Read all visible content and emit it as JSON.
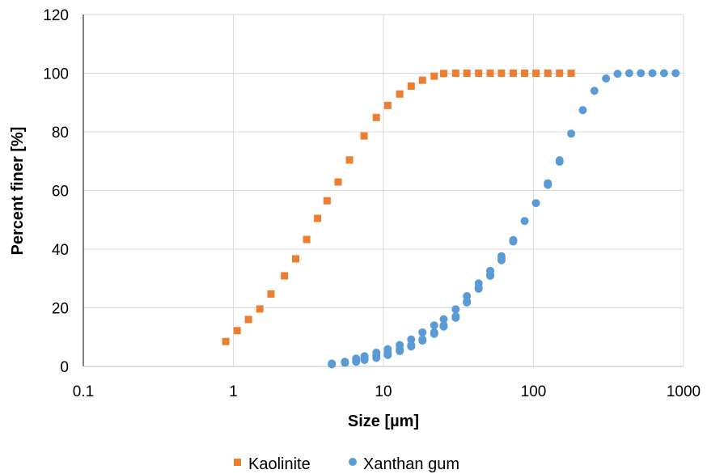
{
  "chart_data": {
    "type": "scatter",
    "title": "",
    "xlabel": "Size [µm]",
    "ylabel": "Percent finer [%]",
    "x_scale": "log",
    "xlim": [
      0.1,
      1000
    ],
    "ylim": [
      0,
      120
    ],
    "x_ticks": [
      0.1,
      1,
      10,
      100,
      1000
    ],
    "x_tick_labels": [
      "0.1",
      "1",
      "10",
      "100",
      "1000"
    ],
    "y_ticks": [
      0,
      20,
      40,
      60,
      80,
      100,
      120
    ],
    "y_tick_labels": [
      "0",
      "20",
      "40",
      "60",
      "80",
      "100",
      "120"
    ],
    "grid": true,
    "legend_position": "bottom",
    "series": [
      {
        "name": "Kaolinite",
        "marker": "square",
        "color": "#ED7D31",
        "points": [
          [
            0.89,
            8.5
          ],
          [
            1.06,
            12.2
          ],
          [
            1.26,
            16.0
          ],
          [
            1.5,
            19.6
          ],
          [
            1.78,
            24.7
          ],
          [
            2.19,
            30.9
          ],
          [
            2.6,
            36.7
          ],
          [
            3.08,
            43.3
          ],
          [
            3.64,
            50.5
          ],
          [
            4.21,
            56.5
          ],
          [
            4.99,
            62.9
          ],
          [
            5.94,
            70.4
          ],
          [
            7.43,
            78.6
          ],
          [
            8.97,
            84.9
          ],
          [
            10.69,
            89.0
          ],
          [
            12.84,
            92.9
          ],
          [
            15.31,
            95.6
          ],
          [
            18.2,
            97.6
          ],
          [
            21.8,
            99.0
          ],
          [
            25.2,
            99.9
          ],
          [
            30.3,
            100
          ],
          [
            36.0,
            100
          ],
          [
            43.1,
            100
          ],
          [
            51.5,
            100
          ],
          [
            61.2,
            100
          ],
          [
            73.3,
            100
          ],
          [
            87.3,
            100
          ],
          [
            103.9,
            100
          ],
          [
            124.6,
            100
          ],
          [
            149.2,
            100
          ],
          [
            178.3,
            100
          ]
        ]
      },
      {
        "name": "Xanthan gum",
        "marker": "circle",
        "color": "#5B9BD5",
        "points": [
          [
            4.53,
            1.0
          ],
          [
            5.54,
            1.6
          ],
          [
            6.58,
            2.1
          ],
          [
            7.48,
            2.8
          ],
          [
            8.97,
            3.6
          ],
          [
            10.69,
            4.7
          ],
          [
            12.84,
            5.9
          ],
          [
            15.31,
            7.3
          ],
          [
            18.2,
            9.2
          ],
          [
            21.8,
            11.6
          ],
          [
            25.2,
            14.0
          ],
          [
            30.3,
            17.1
          ],
          [
            36.0,
            22.2
          ],
          [
            43.1,
            26.9
          ],
          [
            51.5,
            31.3
          ],
          [
            61.2,
            36.7
          ],
          [
            73.3,
            43.1
          ],
          [
            124.6,
            62.5
          ],
          [
            149.2,
            70.3
          ],
          [
            4.53,
            0.7
          ],
          [
            5.54,
            1.2
          ],
          [
            6.58,
            1.6
          ],
          [
            7.48,
            2.2
          ],
          [
            8.97,
            2.9
          ],
          [
            10.69,
            3.9
          ],
          [
            12.84,
            5.2
          ],
          [
            15.31,
            6.8
          ],
          [
            18.2,
            8.8
          ],
          [
            21.8,
            11.1
          ],
          [
            25.2,
            13.6
          ],
          [
            30.3,
            16.6
          ],
          [
            36.0,
            21.8
          ],
          [
            43.1,
            26.5
          ],
          [
            51.5,
            30.9
          ],
          [
            61.2,
            36.2
          ],
          [
            73.3,
            42.6
          ],
          [
            124.6,
            61.9
          ],
          [
            149.2,
            69.8
          ],
          [
            6.58,
            2.7
          ],
          [
            7.48,
            3.5
          ],
          [
            8.97,
            4.7
          ],
          [
            10.69,
            5.9
          ],
          [
            12.84,
            7.3
          ],
          [
            15.31,
            9.2
          ],
          [
            18.2,
            11.6
          ],
          [
            21.8,
            14.0
          ],
          [
            25.2,
            16.1
          ],
          [
            30.3,
            19.5
          ],
          [
            36.0,
            24.0
          ],
          [
            43.1,
            28.3
          ],
          [
            51.5,
            32.6
          ],
          [
            61.2,
            37.6
          ],
          [
            87.3,
            49.6
          ],
          [
            103.9,
            55.7
          ],
          [
            178.3,
            79.4
          ],
          [
            213.1,
            87.4
          ],
          [
            254.6,
            94.0
          ],
          [
            304.3,
            98.2
          ],
          [
            363.6,
            99.8
          ],
          [
            434.5,
            100
          ],
          [
            519.1,
            100
          ],
          [
            620.3,
            100
          ],
          [
            741.5,
            100
          ],
          [
            885.7,
            100
          ]
        ]
      }
    ]
  }
}
